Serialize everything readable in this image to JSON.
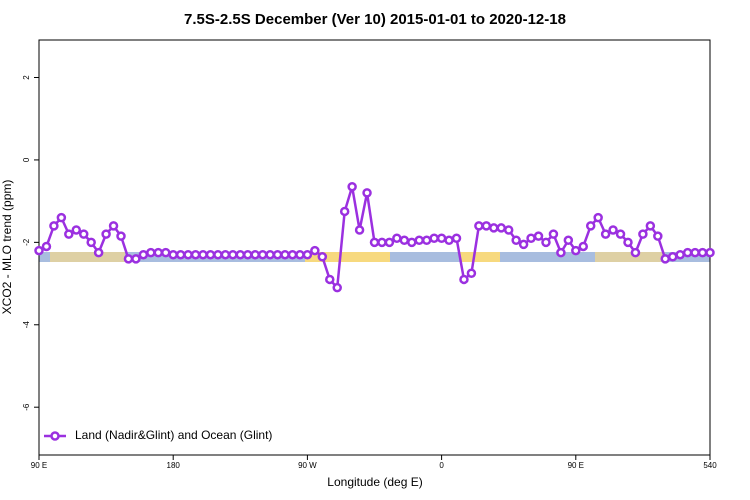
{
  "chart_data": {
    "type": "line",
    "title": "7.5S-2.5S December (Ver 10)   2015-01-01 to 2020-12-18",
    "x_label": "Longitude (deg E)",
    "y_label": "XCO2 - MLO trend (ppm)",
    "xlim": [
      90,
      540
    ],
    "ylim": [
      -7.16,
      2.91
    ],
    "xticks": [
      {
        "value": 90,
        "label": "90 E"
      },
      180,
      {
        "value": 270,
        "label": "90 W"
      },
      {
        "value": 360,
        "label": "0"
      },
      {
        "value": 450,
        "label": "90 E"
      },
      540
    ],
    "yticks": [
      -6,
      -4,
      -2,
      0,
      2
    ],
    "legend": "bottom-left",
    "x": [
      90,
      95,
      100,
      105,
      110,
      115,
      120,
      125,
      130,
      135,
      140,
      145,
      150,
      155,
      160,
      165,
      170,
      175,
      180,
      185,
      190,
      195,
      200,
      205,
      210,
      215,
      220,
      225,
      230,
      235,
      240,
      245,
      250,
      255,
      260,
      265,
      270,
      275,
      280,
      285,
      290,
      295,
      300,
      305,
      310,
      315,
      320,
      325,
      330,
      335,
      340,
      345,
      350,
      355,
      360,
      365,
      370,
      375,
      380,
      385,
      390,
      395,
      400,
      405,
      410,
      415,
      420,
      425,
      430,
      435,
      440,
      445,
      450,
      455,
      460,
      465,
      470,
      475,
      480,
      485,
      490,
      495,
      500,
      505,
      510,
      515,
      520,
      525,
      530,
      535,
      540
    ],
    "series": [
      {
        "name": "Land (Nadir&Glint) and Ocean (Glint)",
        "color": "#9b30e0",
        "values": [
          -2.2,
          -2.1,
          -1.6,
          -1.4,
          -1.8,
          -1.7,
          -1.8,
          -2.0,
          -2.25,
          -1.8,
          -1.6,
          -1.85,
          -2.4,
          -2.4,
          -2.3,
          -2.25,
          -2.25,
          -2.25,
          -2.3,
          -2.3,
          -2.3,
          -2.3,
          -2.3,
          -2.3,
          -2.3,
          -2.3,
          -2.3,
          -2.3,
          -2.3,
          -2.3,
          -2.3,
          -2.3,
          -2.3,
          -2.3,
          -2.3,
          -2.3,
          -2.3,
          -2.2,
          -2.35,
          -2.9,
          -3.1,
          -1.25,
          -0.65,
          -1.7,
          -0.8,
          -2.0,
          -2.0,
          -2.0,
          -1.9,
          -1.95,
          -2.0,
          -1.95,
          -1.95,
          -1.9,
          -1.9,
          -1.95,
          -1.9,
          -2.9,
          -2.75,
          -1.6,
          -1.6,
          -1.65,
          -1.65,
          -1.7,
          -1.95,
          -2.05,
          -1.9,
          -1.85,
          -2.0,
          -1.8,
          -2.25,
          -1.95,
          -2.2,
          -2.1,
          -1.6,
          -1.4,
          -1.8,
          -1.7,
          -1.8,
          -2.0,
          -2.25,
          -1.8,
          -1.6,
          -1.85,
          -2.4,
          -2.35,
          -2.3,
          -2.25,
          -2.25,
          -2.25,
          -2.25
        ]
      }
    ]
  }
}
